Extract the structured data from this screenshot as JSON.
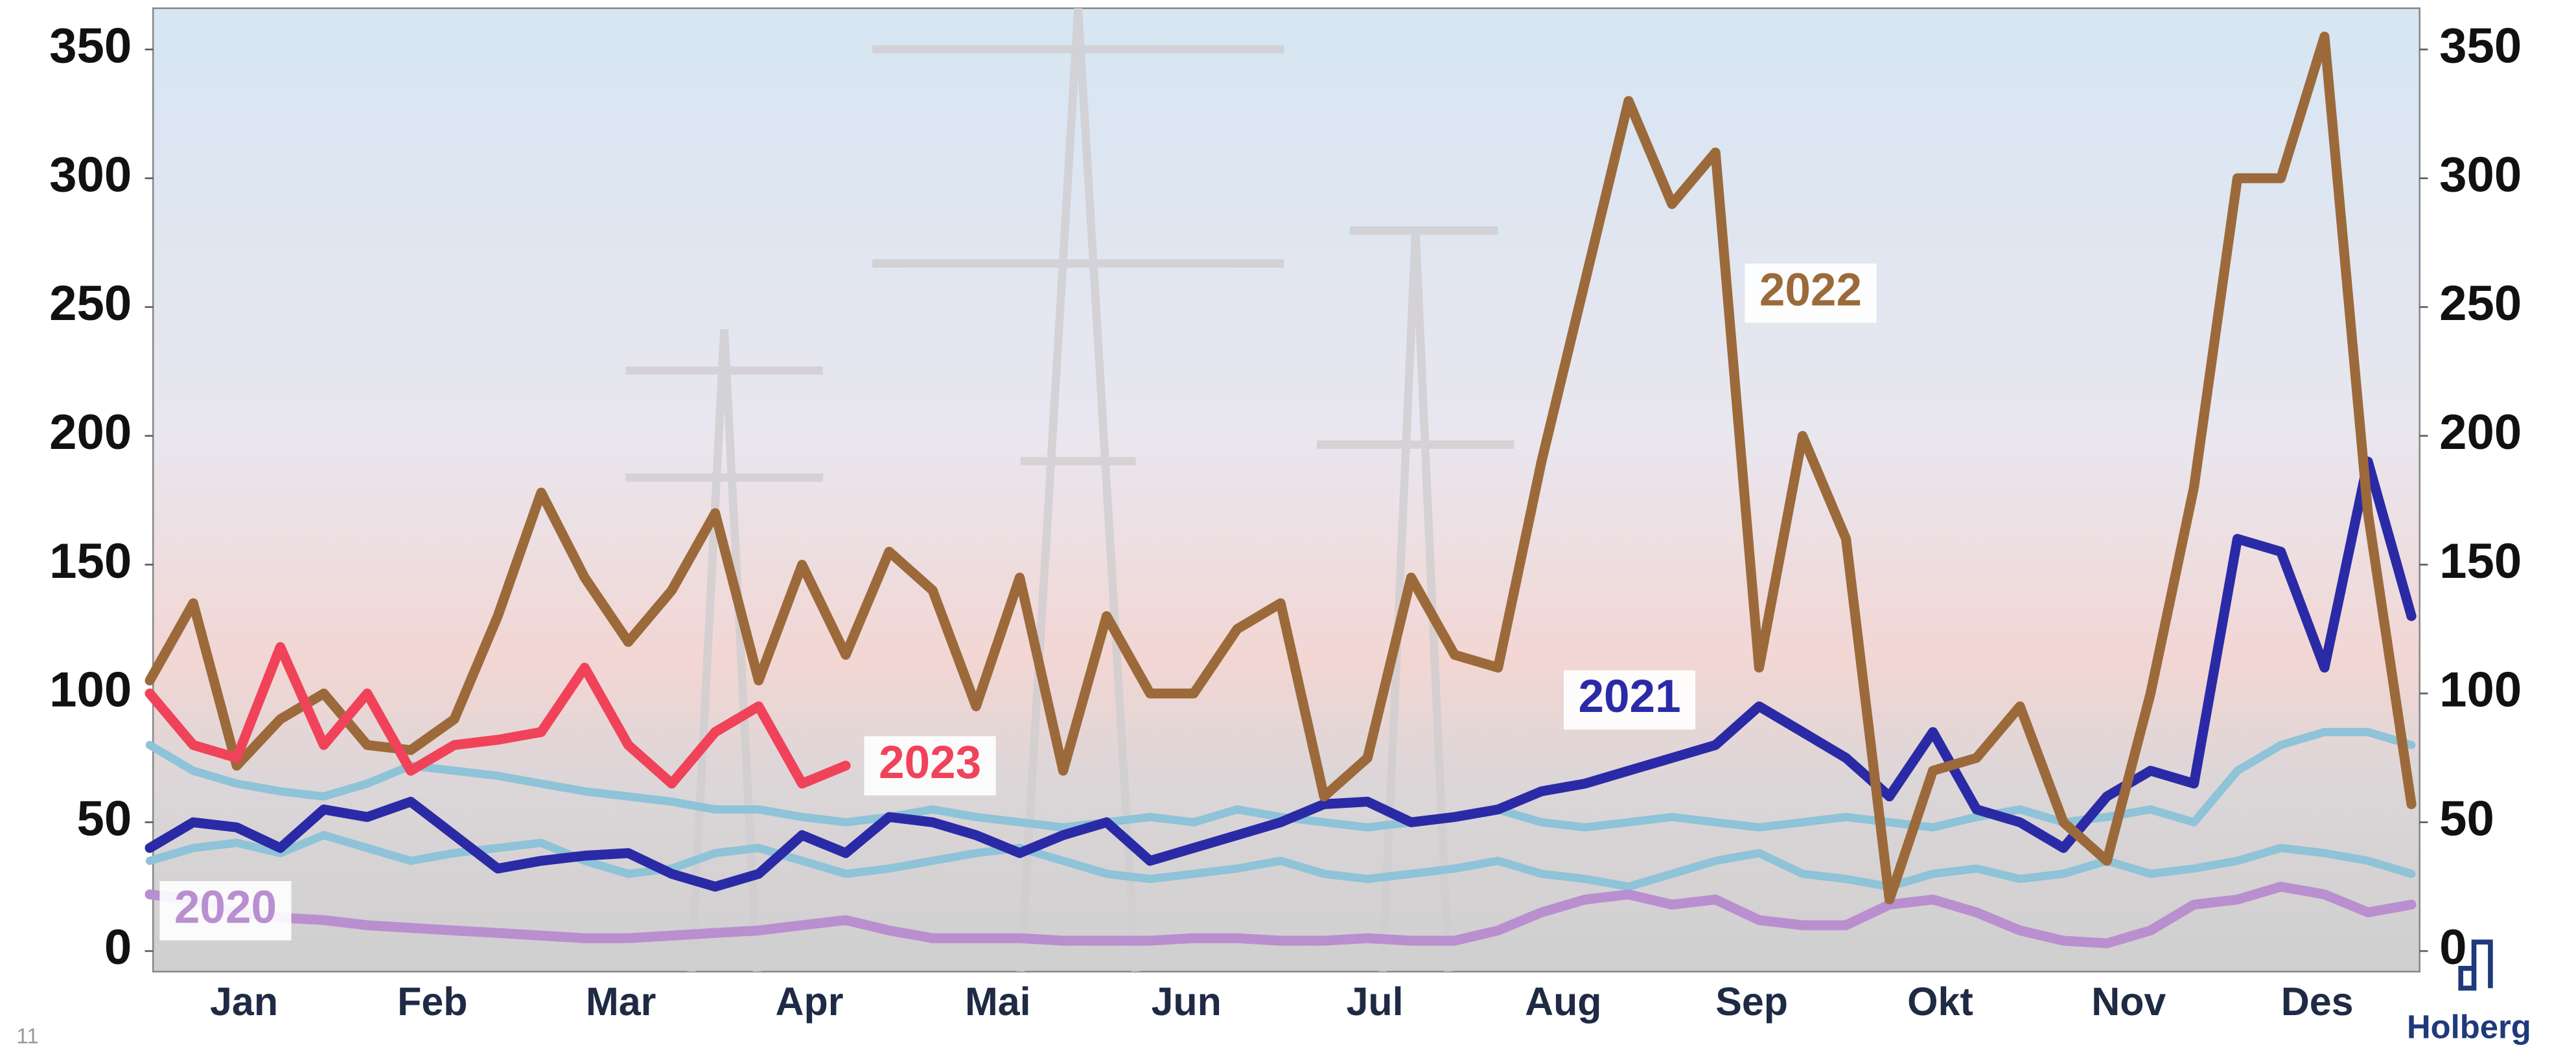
{
  "chart_data": {
    "type": "line",
    "categories": [
      "Jan",
      "Feb",
      "Mar",
      "Apr",
      "Mai",
      "Jun",
      "Jul",
      "Aug",
      "Sep",
      "Okt",
      "Nov",
      "Des"
    ],
    "x": [
      0,
      1,
      2,
      3,
      4,
      5,
      6,
      7,
      8,
      9,
      10,
      11,
      12,
      13,
      14,
      15,
      16,
      17,
      18,
      19,
      20,
      21,
      22,
      23,
      24,
      25,
      26,
      27,
      28,
      29,
      30,
      31,
      32,
      33,
      34,
      35,
      36,
      37,
      38,
      39,
      40,
      41,
      42,
      43,
      44,
      45,
      46,
      47,
      48,
      49,
      50,
      51,
      52
    ],
    "xlim": [
      0,
      52
    ],
    "ylim": [
      -8,
      366
    ],
    "yticks": [
      0,
      50,
      100,
      150,
      200,
      250,
      300,
      350
    ],
    "y2lim": [
      -8,
      366
    ],
    "y2ticks": [
      0,
      50,
      100,
      150,
      200,
      250,
      300,
      350
    ],
    "series": [
      {
        "color": "#8ec3d8",
        "values": [
          80,
          70,
          65,
          62,
          60,
          65,
          72,
          70,
          68,
          65,
          62,
          60,
          58,
          55,
          55,
          52,
          50,
          52,
          55,
          52,
          50,
          48,
          50,
          52,
          50,
          55,
          52,
          50,
          48,
          50,
          52,
          55,
          50,
          48,
          50,
          52,
          50,
          48,
          50,
          52,
          50,
          48,
          52,
          55,
          50,
          52,
          55,
          50,
          70,
          80,
          85,
          85,
          80
        ]
      },
      {
        "color": "#8ec3d8",
        "values": [
          35,
          40,
          42,
          38,
          45,
          40,
          35,
          38,
          40,
          42,
          35,
          30,
          32,
          38,
          40,
          35,
          30,
          32,
          35,
          38,
          40,
          35,
          30,
          28,
          30,
          32,
          35,
          30,
          28,
          30,
          32,
          35,
          30,
          28,
          25,
          30,
          35,
          38,
          30,
          28,
          25,
          30,
          32,
          28,
          30,
          35,
          30,
          32,
          35,
          40,
          38,
          35,
          30
        ]
      },
      {
        "name": "2020",
        "color": "#b98fd0",
        "values": [
          22,
          20,
          15,
          13,
          12,
          10,
          9,
          8,
          7,
          6,
          5,
          5,
          6,
          7,
          8,
          10,
          12,
          8,
          5,
          5,
          5,
          4,
          4,
          4,
          5,
          5,
          4,
          4,
          5,
          4,
          4,
          8,
          15,
          20,
          22,
          18,
          20,
          12,
          10,
          10,
          18,
          20,
          15,
          8,
          4,
          3,
          8,
          18,
          20,
          25,
          22,
          15,
          18
        ]
      },
      {
        "name": "2021",
        "color": "#2b2aa6",
        "values": [
          40,
          50,
          48,
          40,
          55,
          52,
          58,
          45,
          32,
          35,
          37,
          38,
          30,
          25,
          30,
          45,
          38,
          52,
          50,
          45,
          38,
          45,
          50,
          35,
          40,
          45,
          50,
          57,
          58,
          50,
          52,
          55,
          62,
          65,
          70,
          75,
          80,
          95,
          85,
          75,
          60,
          85,
          55,
          50,
          40,
          60,
          70,
          65,
          160,
          155,
          110,
          190,
          130
        ]
      },
      {
        "name": "2022",
        "color": "#9c6a3a",
        "values": [
          105,
          135,
          72,
          90,
          100,
          80,
          78,
          90,
          130,
          178,
          145,
          120,
          140,
          170,
          105,
          150,
          115,
          155,
          140,
          95,
          145,
          70,
          130,
          100,
          100,
          125,
          135,
          60,
          75,
          145,
          115,
          110,
          190,
          260,
          330,
          290,
          310,
          110,
          200,
          160,
          20,
          70,
          75,
          95,
          50,
          35,
          100,
          180,
          300,
          300,
          355,
          170,
          57
        ]
      },
      {
        "name": "2023",
        "color": "#f0435a",
        "values": [
          100,
          80,
          75,
          118,
          80,
          100,
          70,
          80,
          82,
          85,
          110,
          80,
          65,
          85,
          95,
          65,
          72,
          null,
          null,
          null,
          null,
          null,
          null,
          null,
          null,
          null,
          null,
          null,
          null,
          null,
          null,
          null,
          null,
          null,
          null,
          null,
          null,
          null,
          null,
          null,
          null,
          null,
          null,
          null,
          null,
          null,
          null,
          null,
          null,
          null,
          null,
          null,
          null
        ]
      }
    ],
    "page_number": "11",
    "logo_text": "Holberg"
  }
}
